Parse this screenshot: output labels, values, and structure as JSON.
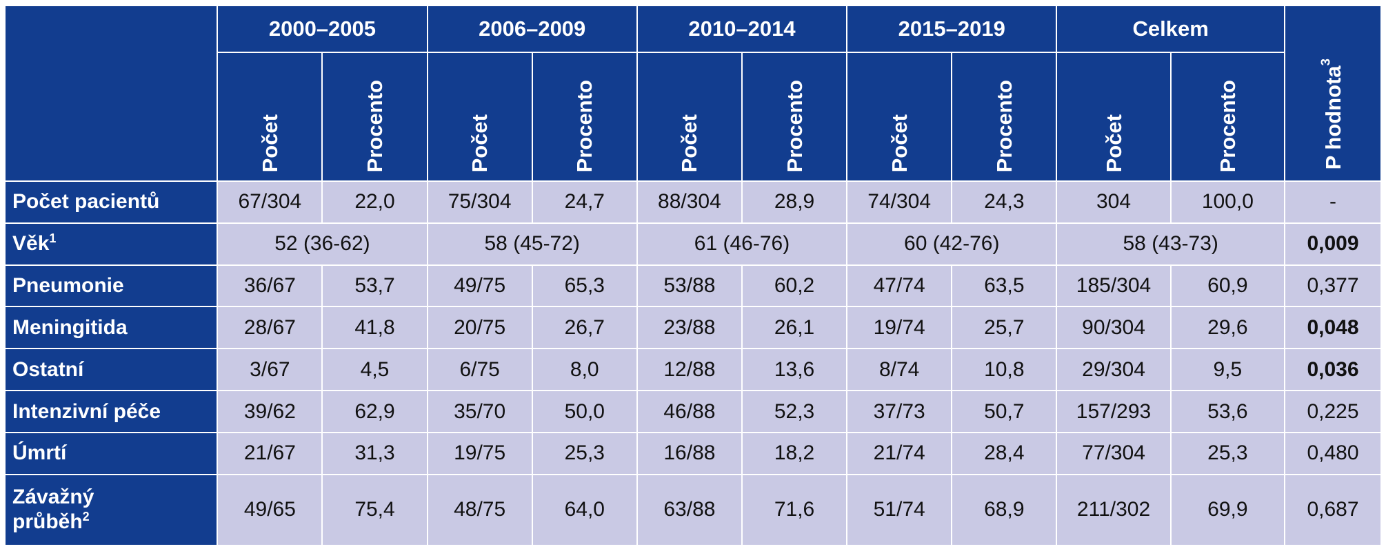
{
  "header": {
    "periods": [
      "2000–2005",
      "2006–2009",
      "2010–2014",
      "2015–2019",
      "Celkem"
    ],
    "count_label": "Počet",
    "percent_label": "Procento",
    "pvalue_label": "P hodnota",
    "pvalue_sup": "3"
  },
  "rows": {
    "pacienti": {
      "label": "Počet pacientů",
      "cells": [
        "67/304",
        "22,0",
        "75/304",
        "24,7",
        "88/304",
        "28,9",
        "74/304",
        "24,3",
        "304",
        "100,0"
      ],
      "p": "-"
    },
    "vek": {
      "label": "Věk",
      "sup": "1",
      "cells": [
        "52 (36-62)",
        "58 (45-72)",
        "61 (46-76)",
        "60 (42-76)",
        "58 (43-73)"
      ],
      "p": "0,009"
    },
    "pneumonie": {
      "label": "Pneumonie",
      "cells": [
        "36/67",
        "53,7",
        "49/75",
        "65,3",
        "53/88",
        "60,2",
        "47/74",
        "63,5",
        "185/304",
        "60,9"
      ],
      "p": "0,377"
    },
    "meningitida": {
      "label": "Meningitida",
      "cells": [
        "28/67",
        "41,8",
        "20/75",
        "26,7",
        "23/88",
        "26,1",
        "19/74",
        "25,7",
        "90/304",
        "29,6"
      ],
      "p": "0,048"
    },
    "ostatni": {
      "label": "Ostatní",
      "cells": [
        "3/67",
        "4,5",
        "6/75",
        "8,0",
        "12/88",
        "13,6",
        "8/74",
        "10,8",
        "29/304",
        "9,5"
      ],
      "p": "0,036"
    },
    "intenzivni": {
      "label": "Intenzivní péče",
      "cells": [
        "39/62",
        "62,9",
        "35/70",
        "50,0",
        "46/88",
        "52,3",
        "37/73",
        "50,7",
        "157/293",
        "53,6"
      ],
      "p": "0,225"
    },
    "umrti": {
      "label": "Úmrtí",
      "cells": [
        "21/67",
        "31,3",
        "19/75",
        "25,3",
        "16/88",
        "18,2",
        "21/74",
        "28,4",
        "77/304",
        "25,3"
      ],
      "p": "0,480"
    },
    "zavazny": {
      "label_line1": "Závažný",
      "label_line2": "průběh",
      "sup": "2",
      "cells": [
        "49/65",
        "75,4",
        "48/75",
        "64,0",
        "63/88",
        "71,6",
        "51/74",
        "68,9",
        "211/302",
        "69,9"
      ],
      "p": "0,687"
    }
  },
  "colors": {
    "header_bg": "#123d8f",
    "cell_bg": "#c9c9e4",
    "header_text": "#ffffff"
  }
}
